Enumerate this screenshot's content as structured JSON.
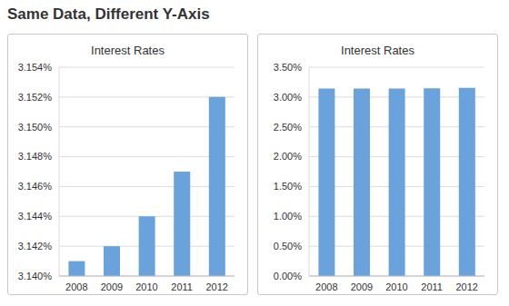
{
  "title": "Same Data, Different Y-Axis",
  "chart_data": [
    {
      "type": "bar",
      "title": "Interest Rates",
      "categories": [
        "2008",
        "2009",
        "2010",
        "2011",
        "2012"
      ],
      "values": [
        3.141,
        3.142,
        3.144,
        3.147,
        3.152
      ],
      "color": "#6aa2dc",
      "ylim": [
        3.14,
        3.154
      ],
      "yticks": [
        {
          "value": 3.14,
          "label": "3.140%"
        },
        {
          "value": 3.142,
          "label": "3.142%"
        },
        {
          "value": 3.144,
          "label": "3.144%"
        },
        {
          "value": 3.146,
          "label": "3.146%"
        },
        {
          "value": 3.148,
          "label": "3.148%"
        },
        {
          "value": 3.15,
          "label": "3.150%"
        },
        {
          "value": 3.152,
          "label": "3.152%"
        },
        {
          "value": 3.154,
          "label": "3.154%"
        }
      ],
      "grid": true
    },
    {
      "type": "bar",
      "title": "Interest Rates",
      "categories": [
        "2008",
        "2009",
        "2010",
        "2011",
        "2012"
      ],
      "values": [
        3.141,
        3.142,
        3.144,
        3.147,
        3.152
      ],
      "color": "#6aa2dc",
      "ylim": [
        0,
        3.5
      ],
      "yticks": [
        {
          "value": 0,
          "label": "0.00%"
        },
        {
          "value": 0.5,
          "label": "0.50%"
        },
        {
          "value": 1,
          "label": "1.00%"
        },
        {
          "value": 1.5,
          "label": "1.50%"
        },
        {
          "value": 2,
          "label": "2.00%"
        },
        {
          "value": 2.5,
          "label": "2.50%"
        },
        {
          "value": 3,
          "label": "3.00%"
        },
        {
          "value": 3.5,
          "label": "3.50%"
        }
      ],
      "grid": true
    }
  ]
}
